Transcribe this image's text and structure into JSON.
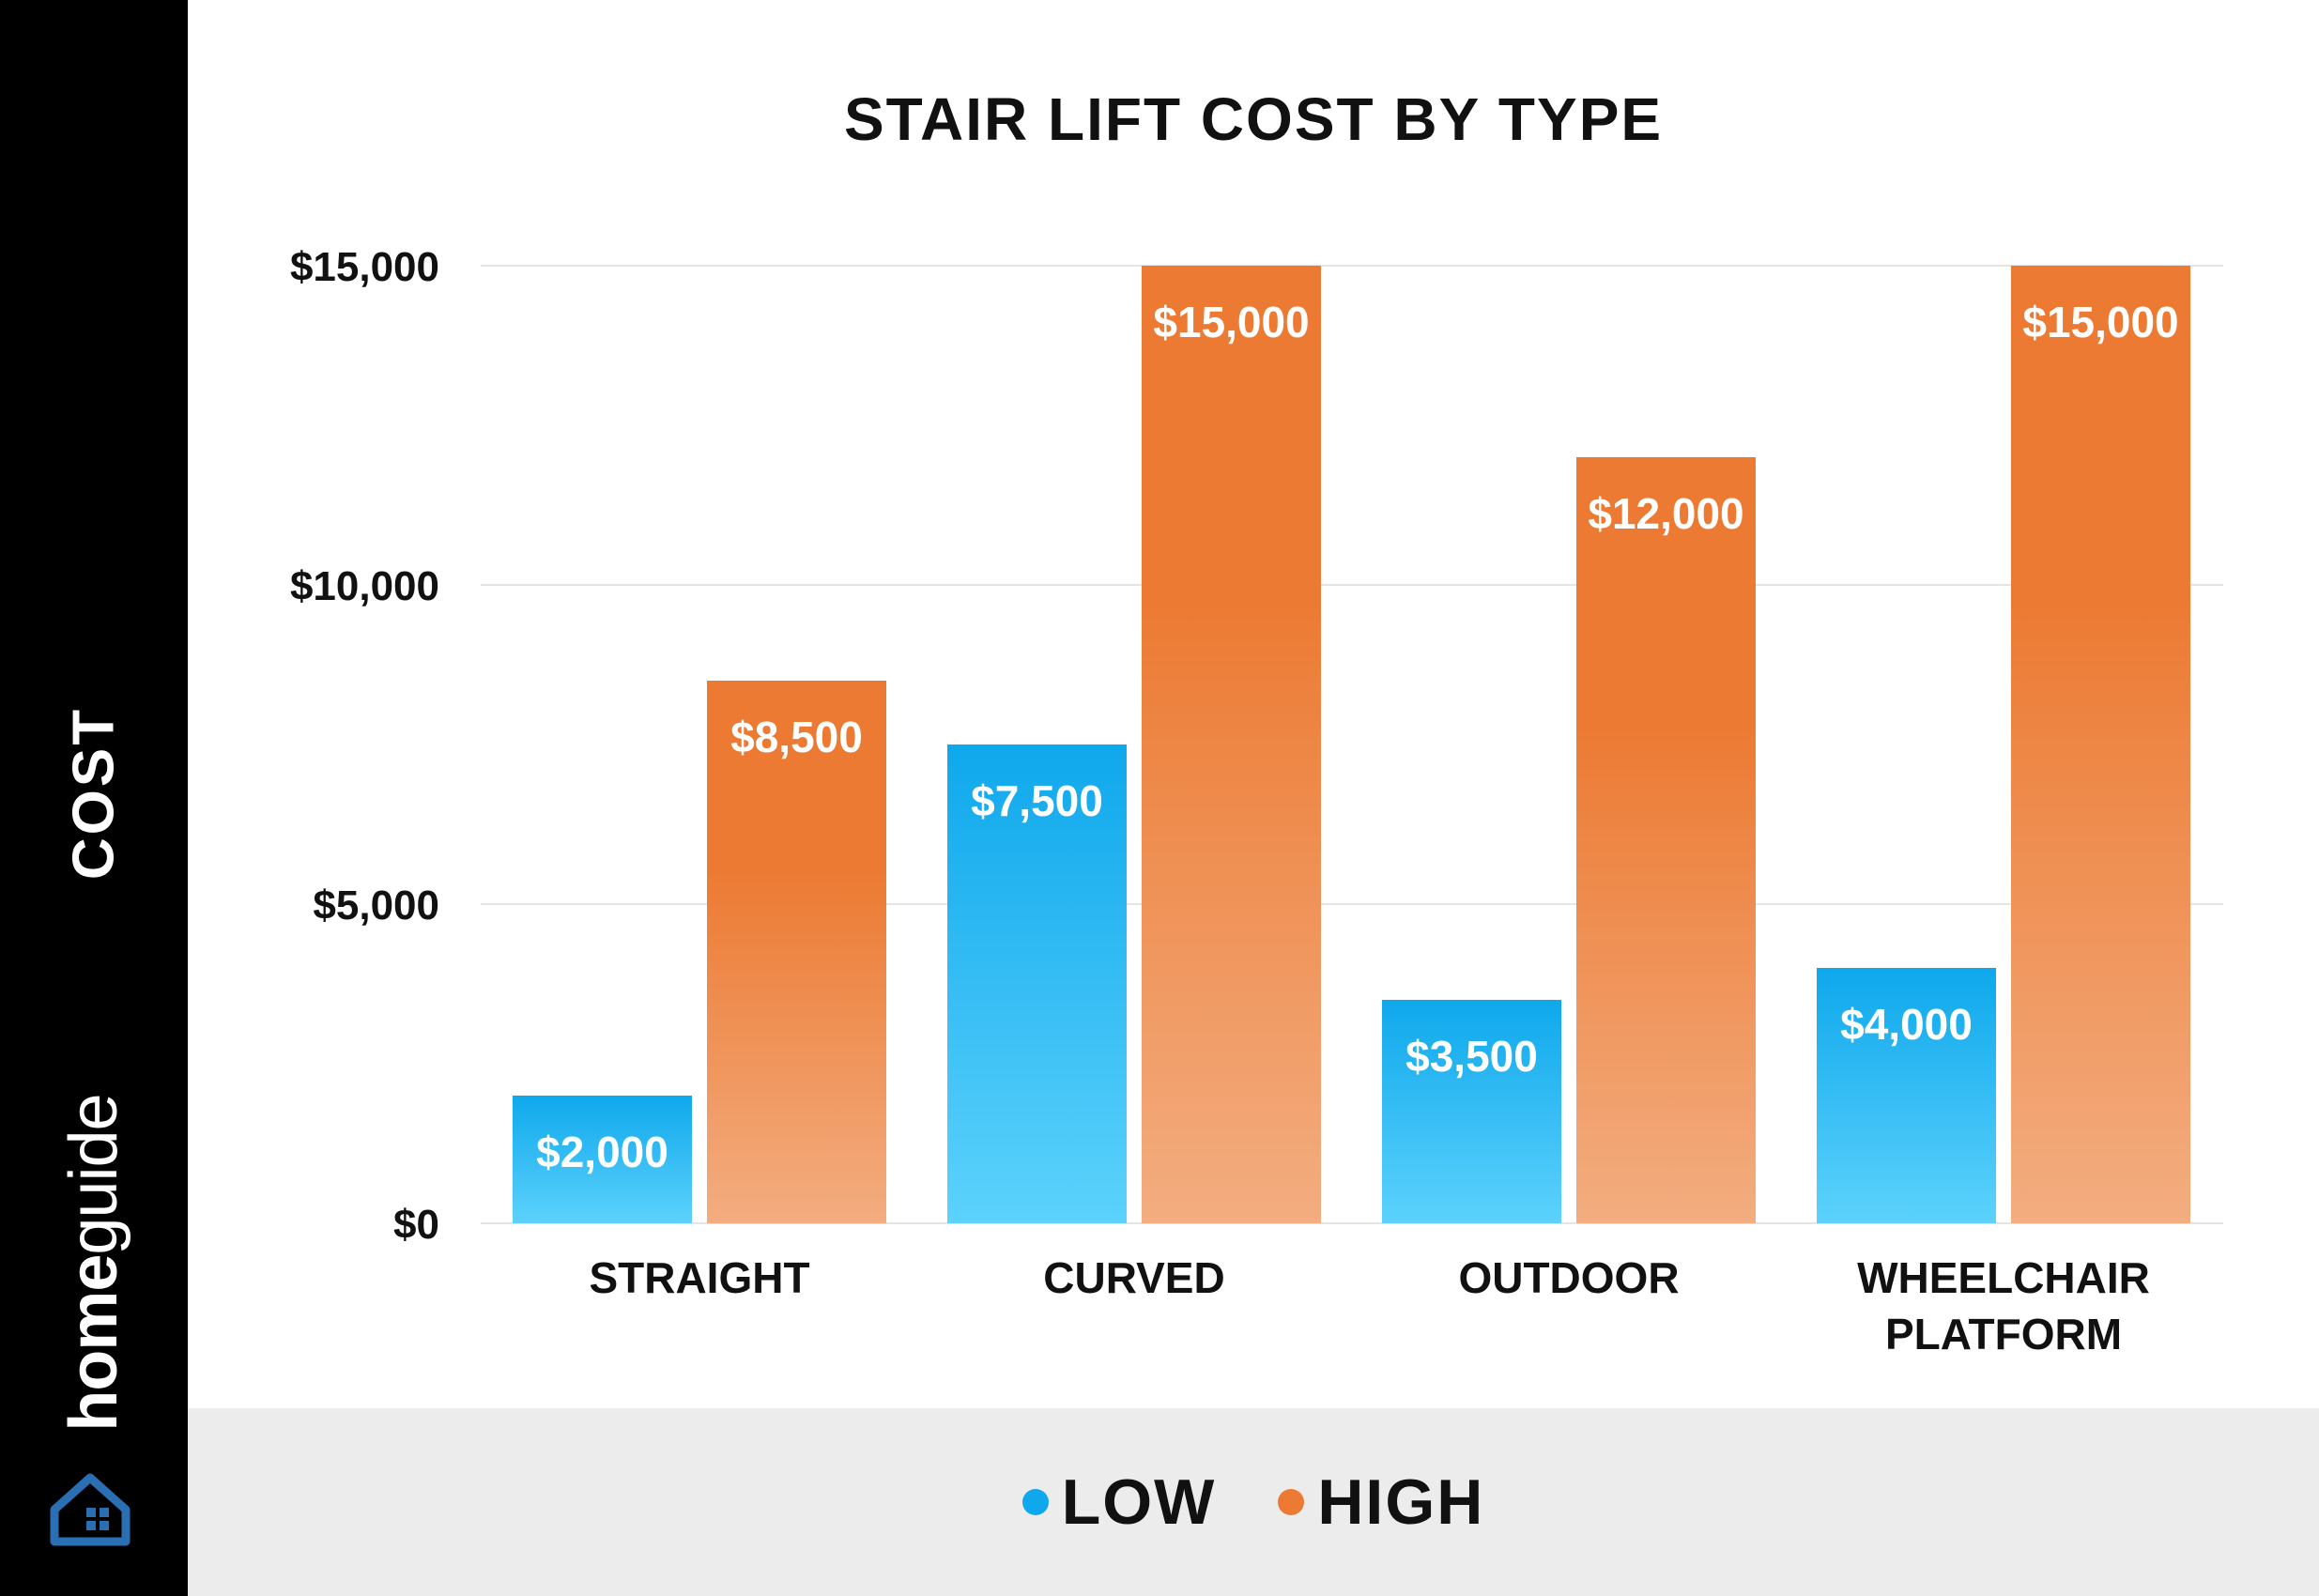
{
  "brand": {
    "part1": "home",
    "part2": "guide"
  },
  "colors": {
    "low_top": "#0fa8ec",
    "low_bottom": "#5cd2fc",
    "high_top": "#ec7a33",
    "high_bottom": "#f3ad80",
    "sidebar": "#000000",
    "legend_band": "#ececec",
    "text": "#111111"
  },
  "icons": {
    "logo": "house-icon"
  },
  "chart_data": {
    "type": "bar",
    "title": "STAIR LIFT COST BY TYPE",
    "ylabel": "COST",
    "xlabel": "",
    "categories": [
      [
        "STRAIGHT"
      ],
      [
        "CURVED"
      ],
      [
        "OUTDOOR"
      ],
      [
        "WHEELCHAIR",
        "PLATFORM"
      ]
    ],
    "series": [
      {
        "name": "LOW",
        "values": [
          2000,
          7500,
          3500,
          4000
        ],
        "labels": [
          "$2,000",
          "$7,500",
          "$3,500",
          "$4,000"
        ]
      },
      {
        "name": "HIGH",
        "values": [
          8500,
          15000,
          12000,
          15000
        ],
        "labels": [
          "$8,500",
          "$15,000",
          "$12,000",
          "$15,000"
        ]
      }
    ],
    "ylim": [
      0,
      15000
    ],
    "yticks": [
      0,
      5000,
      10000,
      15000
    ],
    "ytick_labels": [
      "$0",
      "$5,000",
      "$10,000",
      "$15,000"
    ],
    "grid": true,
    "legend": "bottom-center"
  }
}
